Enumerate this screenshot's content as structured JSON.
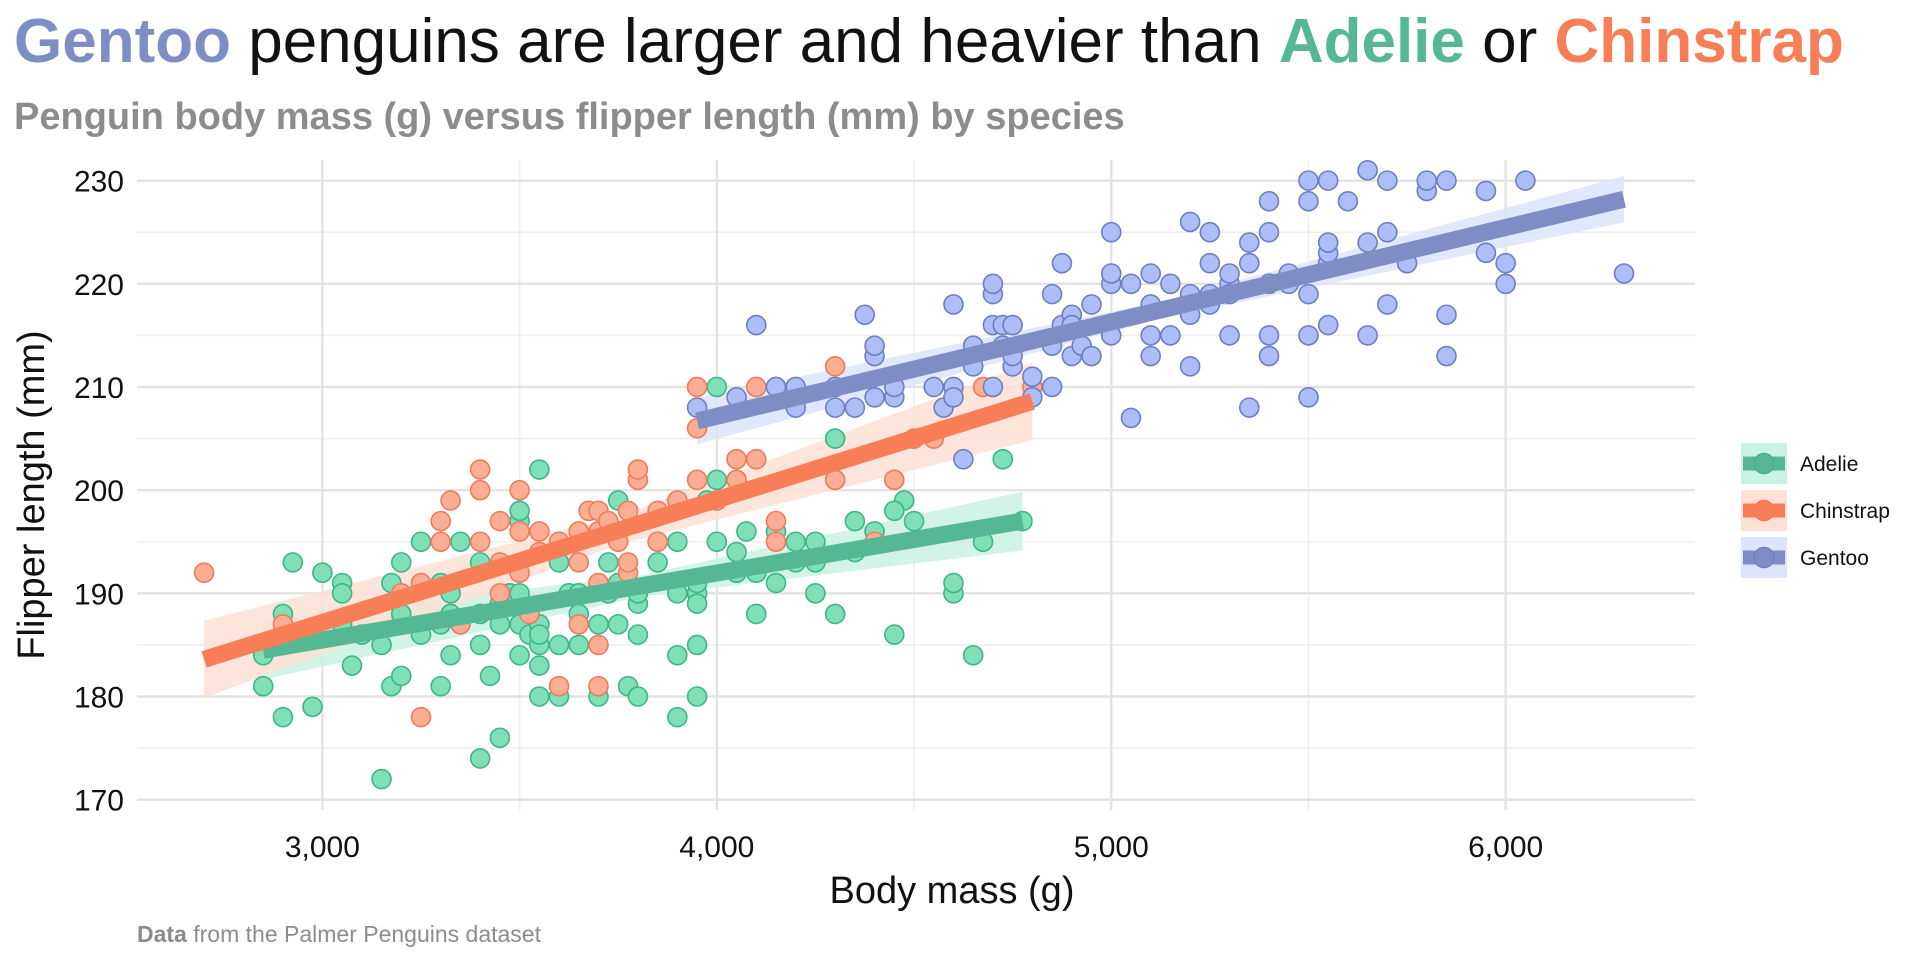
{
  "title": {
    "word1": "Gentoo",
    "mid": " penguins are larger and heavier than ",
    "word2": "Adelie",
    "or": " or ",
    "word3": "Chinstrap"
  },
  "subtitle": "Penguin body mass (g) versus flipper length (mm) by species",
  "caption": {
    "bold": "Data",
    "rest": " from the Palmer Penguins dataset"
  },
  "colors": {
    "Adelie": {
      "point": "#7fe0b8",
      "stroke": "#3fb589",
      "line": "#55b793",
      "band": "#c9f2e2"
    },
    "Chinstrap": {
      "point": "#fcae95",
      "stroke": "#f07b59",
      "line": "#f77e56",
      "band": "#fde0d6"
    },
    "Gentoo": {
      "point": "#adbdf7",
      "stroke": "#6d7fc0",
      "line": "#7e8dc4",
      "band": "#dde4fb"
    },
    "title_gentoo": "#7e8dc4",
    "title_adelie": "#55b793",
    "title_chinstrap": "#f77e56"
  },
  "chart_data": {
    "type": "scatter",
    "xlabel": "Body mass (g)",
    "ylabel": "Flipper length (mm)",
    "xlim": [
      2530,
      6480
    ],
    "ylim": [
      169,
      232
    ],
    "x_ticks": [
      3000,
      4000,
      5000,
      6000
    ],
    "x_tick_labels": [
      "3,000",
      "4,000",
      "5,000",
      "6,000"
    ],
    "y_ticks": [
      170,
      180,
      190,
      200,
      210,
      220,
      230
    ],
    "y_tick_labels": [
      "170",
      "180",
      "190",
      "200",
      "210",
      "220",
      "230"
    ],
    "grid": true,
    "legend_position": "right",
    "series": [
      {
        "name": "Adelie",
        "trend": {
          "x": [
            2850,
            4775
          ],
          "y": [
            184.5,
            197.0
          ],
          "band": 1.9
        },
        "points": [
          [
            2850,
            181
          ],
          [
            2850,
            184
          ],
          [
            2900,
            178
          ],
          [
            2900,
            188
          ],
          [
            2925,
            193
          ],
          [
            2975,
            179
          ],
          [
            3000,
            192
          ],
          [
            3050,
            191
          ],
          [
            3050,
            190
          ],
          [
            3075,
            183
          ],
          [
            3150,
            172
          ],
          [
            3150,
            185
          ],
          [
            3175,
            181
          ],
          [
            3175,
            191
          ],
          [
            3200,
            182
          ],
          [
            3200,
            193
          ],
          [
            3250,
            195
          ],
          [
            3300,
            181
          ],
          [
            3300,
            187
          ],
          [
            3325,
            184
          ],
          [
            3325,
            190
          ],
          [
            3350,
            195
          ],
          [
            3400,
            174
          ],
          [
            3400,
            185
          ],
          [
            3400,
            193
          ],
          [
            3425,
            182
          ],
          [
            3450,
            176
          ],
          [
            3450,
            187
          ],
          [
            3475,
            190
          ],
          [
            3500,
            184
          ],
          [
            3500,
            187
          ],
          [
            3500,
            197
          ],
          [
            3500,
            198
          ],
          [
            3525,
            186
          ],
          [
            3550,
            180
          ],
          [
            3550,
            183
          ],
          [
            3550,
            185
          ],
          [
            3550,
            187
          ],
          [
            3550,
            202
          ],
          [
            3600,
            180
          ],
          [
            3600,
            185
          ],
          [
            3625,
            190
          ],
          [
            3650,
            185
          ],
          [
            3650,
            190
          ],
          [
            3700,
            180
          ],
          [
            3700,
            187
          ],
          [
            3700,
            191
          ],
          [
            3725,
            190
          ],
          [
            3725,
            193
          ],
          [
            3750,
            199
          ],
          [
            3775,
            181
          ],
          [
            3800,
            180
          ],
          [
            3800,
            186
          ],
          [
            3800,
            189
          ],
          [
            3800,
            190
          ],
          [
            3850,
            195
          ],
          [
            3900,
            178
          ],
          [
            3900,
            184
          ],
          [
            3900,
            195
          ],
          [
            3950,
            180
          ],
          [
            3950,
            185
          ],
          [
            3950,
            190
          ],
          [
            3950,
            191
          ],
          [
            3975,
            199
          ],
          [
            4000,
            195
          ],
          [
            4000,
            201
          ],
          [
            4000,
            210
          ],
          [
            4050,
            192
          ],
          [
            4075,
            196
          ],
          [
            4100,
            188
          ],
          [
            4150,
            191
          ],
          [
            4150,
            196
          ],
          [
            4200,
            193
          ],
          [
            4250,
            190
          ],
          [
            4250,
            195
          ],
          [
            4300,
            188
          ],
          [
            4300,
            205
          ],
          [
            4350,
            197
          ],
          [
            4400,
            196
          ],
          [
            4450,
            186
          ],
          [
            4475,
            199
          ],
          [
            4500,
            197
          ],
          [
            4600,
            190
          ],
          [
            4600,
            191
          ],
          [
            4650,
            184
          ],
          [
            4675,
            195
          ],
          [
            4725,
            203
          ],
          [
            4775,
            197
          ],
          [
            2900,
            185
          ],
          [
            3100,
            186
          ],
          [
            3200,
            188
          ],
          [
            3300,
            191
          ],
          [
            3450,
            189
          ],
          [
            3500,
            190
          ],
          [
            3650,
            188
          ],
          [
            3750,
            191
          ],
          [
            3850,
            193
          ],
          [
            3950,
            189
          ],
          [
            4050,
            194
          ],
          [
            4200,
            195
          ],
          [
            4350,
            194
          ],
          [
            4450,
            198
          ],
          [
            3600,
            193
          ],
          [
            3325,
            188
          ],
          [
            3050,
            187
          ],
          [
            3250,
            186
          ],
          [
            3750,
            187
          ],
          [
            4100,
            192
          ],
          [
            4250,
            193
          ],
          [
            3400,
            188
          ],
          [
            3550,
            186
          ],
          [
            3900,
            190
          ]
        ]
      },
      {
        "name": "Chinstrap",
        "trend": {
          "x": [
            2700,
            4800
          ],
          "y": [
            183.6,
            208.6
          ],
          "band": 2.5
        },
        "points": [
          [
            2700,
            192
          ],
          [
            2900,
            187
          ],
          [
            3250,
            178
          ],
          [
            3250,
            191
          ],
          [
            3300,
            195
          ],
          [
            3300,
            197
          ],
          [
            3325,
            199
          ],
          [
            3350,
            187
          ],
          [
            3400,
            195
          ],
          [
            3400,
            200
          ],
          [
            3400,
            202
          ],
          [
            3450,
            190
          ],
          [
            3450,
            197
          ],
          [
            3500,
            196
          ],
          [
            3500,
            200
          ],
          [
            3525,
            188
          ],
          [
            3550,
            196
          ],
          [
            3600,
            181
          ],
          [
            3600,
            195
          ],
          [
            3650,
            187
          ],
          [
            3650,
            193
          ],
          [
            3675,
            198
          ],
          [
            3700,
            181
          ],
          [
            3700,
            185
          ],
          [
            3700,
            191
          ],
          [
            3700,
            196
          ],
          [
            3700,
            198
          ],
          [
            3725,
            197
          ],
          [
            3775,
            192
          ],
          [
            3775,
            193
          ],
          [
            3775,
            198
          ],
          [
            3800,
            201
          ],
          [
            3800,
            202
          ],
          [
            3850,
            195
          ],
          [
            3900,
            199
          ],
          [
            3950,
            201
          ],
          [
            3950,
            206
          ],
          [
            3950,
            210
          ],
          [
            4050,
            201
          ],
          [
            4050,
            203
          ],
          [
            4100,
            203
          ],
          [
            4100,
            210
          ],
          [
            4150,
            195
          ],
          [
            4150,
            197
          ],
          [
            4300,
            201
          ],
          [
            4300,
            212
          ],
          [
            4400,
            195
          ],
          [
            4450,
            201
          ],
          [
            4500,
            205
          ],
          [
            4550,
            205
          ],
          [
            4675,
            210
          ],
          [
            4800,
            210
          ],
          [
            3200,
            190
          ],
          [
            3450,
            193
          ],
          [
            3550,
            194
          ],
          [
            3750,
            195
          ],
          [
            3850,
            198
          ],
          [
            3650,
            196
          ],
          [
            3500,
            192
          ],
          [
            4000,
            199
          ]
        ]
      },
      {
        "name": "Gentoo",
        "trend": {
          "x": [
            3950,
            6300
          ],
          "y": [
            206.7,
            228.2
          ],
          "band": 1.5
        },
        "points": [
          [
            3950,
            208
          ],
          [
            4050,
            209
          ],
          [
            4100,
            216
          ],
          [
            4150,
            210
          ],
          [
            4200,
            208
          ],
          [
            4200,
            210
          ],
          [
            4300,
            208
          ],
          [
            4300,
            210
          ],
          [
            4350,
            208
          ],
          [
            4375,
            217
          ],
          [
            4400,
            209
          ],
          [
            4400,
            213
          ],
          [
            4400,
            214
          ],
          [
            4450,
            209
          ],
          [
            4450,
            210
          ],
          [
            4550,
            210
          ],
          [
            4575,
            208
          ],
          [
            4600,
            210
          ],
          [
            4600,
            209
          ],
          [
            4600,
            218
          ],
          [
            4625,
            203
          ],
          [
            4650,
            212
          ],
          [
            4650,
            214
          ],
          [
            4700,
            210
          ],
          [
            4700,
            216
          ],
          [
            4700,
            219
          ],
          [
            4700,
            220
          ],
          [
            4725,
            214
          ],
          [
            4725,
            216
          ],
          [
            4750,
            212
          ],
          [
            4750,
            216
          ],
          [
            4800,
            209
          ],
          [
            4800,
            211
          ],
          [
            4850,
            210
          ],
          [
            4850,
            214
          ],
          [
            4850,
            219
          ],
          [
            4875,
            216
          ],
          [
            4875,
            222
          ],
          [
            4900,
            213
          ],
          [
            4900,
            217
          ],
          [
            4925,
            214
          ],
          [
            4950,
            213
          ],
          [
            4950,
            218
          ],
          [
            5000,
            215
          ],
          [
            5000,
            220
          ],
          [
            5000,
            221
          ],
          [
            5000,
            225
          ],
          [
            5050,
            207
          ],
          [
            5050,
            220
          ],
          [
            5100,
            213
          ],
          [
            5100,
            215
          ],
          [
            5100,
            221
          ],
          [
            5150,
            215
          ],
          [
            5150,
            220
          ],
          [
            5200,
            212
          ],
          [
            5200,
            217
          ],
          [
            5200,
            219
          ],
          [
            5200,
            226
          ],
          [
            5250,
            219
          ],
          [
            5250,
            222
          ],
          [
            5250,
            225
          ],
          [
            5300,
            215
          ],
          [
            5300,
            220
          ],
          [
            5300,
            221
          ],
          [
            5350,
            208
          ],
          [
            5350,
            222
          ],
          [
            5350,
            224
          ],
          [
            5400,
            213
          ],
          [
            5400,
            215
          ],
          [
            5400,
            220
          ],
          [
            5400,
            225
          ],
          [
            5400,
            228
          ],
          [
            5450,
            221
          ],
          [
            5500,
            209
          ],
          [
            5500,
            215
          ],
          [
            5500,
            219
          ],
          [
            5500,
            228
          ],
          [
            5500,
            230
          ],
          [
            5550,
            216
          ],
          [
            5550,
            222
          ],
          [
            5550,
            223
          ],
          [
            5550,
            224
          ],
          [
            5550,
            230
          ],
          [
            5600,
            228
          ],
          [
            5650,
            215
          ],
          [
            5650,
            224
          ],
          [
            5650,
            231
          ],
          [
            5700,
            218
          ],
          [
            5700,
            225
          ],
          [
            5700,
            230
          ],
          [
            5750,
            222
          ],
          [
            5800,
            229
          ],
          [
            5800,
            230
          ],
          [
            5850,
            213
          ],
          [
            5850,
            217
          ],
          [
            5850,
            230
          ],
          [
            5950,
            223
          ],
          [
            5950,
            229
          ],
          [
            6000,
            220
          ],
          [
            6000,
            222
          ],
          [
            6050,
            230
          ],
          [
            6300,
            221
          ],
          [
            4900,
            216
          ],
          [
            5100,
            218
          ],
          [
            5250,
            218
          ],
          [
            5450,
            220
          ],
          [
            4750,
            213
          ],
          [
            5300,
            219
          ]
        ]
      }
    ]
  }
}
